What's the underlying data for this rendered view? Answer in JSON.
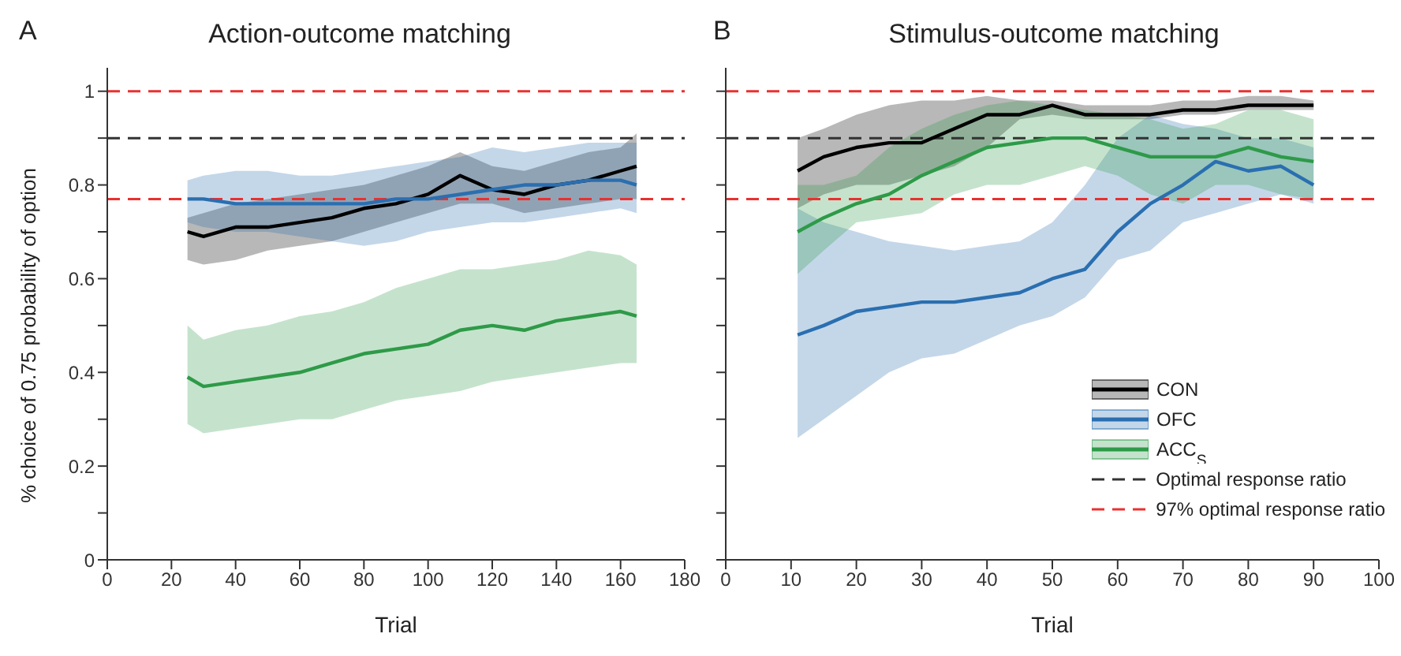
{
  "chart_data": [
    {
      "type": "line",
      "title": "Action-outcome matching",
      "xlabel": "Trial",
      "ylabel": "% choice of 0.75 probability of option",
      "annotations": [
        "A"
      ],
      "x": [
        25,
        30,
        40,
        50,
        60,
        70,
        80,
        90,
        100,
        110,
        120,
        130,
        140,
        150,
        160,
        165
      ],
      "series": [
        {
          "color": "#000000",
          "values": [
            0.7,
            0.69,
            0.71,
            0.71,
            0.72,
            0.73,
            0.75,
            0.76,
            0.78,
            0.82,
            0.79,
            0.78,
            0.8,
            0.81,
            0.83,
            0.84
          ],
          "lower": [
            0.64,
            0.63,
            0.64,
            0.66,
            0.67,
            0.68,
            0.7,
            0.72,
            0.74,
            0.76,
            0.76,
            0.74,
            0.75,
            0.76,
            0.77,
            0.77
          ],
          "upper": [
            0.73,
            0.74,
            0.76,
            0.77,
            0.78,
            0.79,
            0.8,
            0.82,
            0.84,
            0.87,
            0.84,
            0.83,
            0.85,
            0.87,
            0.88,
            0.91
          ]
        },
        {
          "color": "#2a6fb0",
          "values": [
            0.77,
            0.77,
            0.76,
            0.76,
            0.76,
            0.76,
            0.76,
            0.77,
            0.77,
            0.78,
            0.79,
            0.8,
            0.8,
            0.81,
            0.81,
            0.8
          ],
          "lower": [
            0.72,
            0.71,
            0.7,
            0.7,
            0.69,
            0.68,
            0.67,
            0.68,
            0.7,
            0.71,
            0.72,
            0.72,
            0.73,
            0.74,
            0.75,
            0.74
          ],
          "upper": [
            0.81,
            0.82,
            0.83,
            0.83,
            0.82,
            0.82,
            0.83,
            0.84,
            0.85,
            0.86,
            0.88,
            0.87,
            0.88,
            0.89,
            0.89,
            0.89
          ]
        },
        {
          "color": "#2e9a48",
          "values": [
            0.39,
            0.37,
            0.38,
            0.39,
            0.4,
            0.42,
            0.44,
            0.45,
            0.46,
            0.49,
            0.5,
            0.49,
            0.51,
            0.52,
            0.53,
            0.52
          ],
          "lower": [
            0.29,
            0.27,
            0.28,
            0.29,
            0.3,
            0.3,
            0.32,
            0.34,
            0.35,
            0.36,
            0.38,
            0.39,
            0.4,
            0.41,
            0.42,
            0.42
          ],
          "upper": [
            0.5,
            0.47,
            0.49,
            0.5,
            0.52,
            0.53,
            0.55,
            0.58,
            0.6,
            0.62,
            0.62,
            0.63,
            0.64,
            0.66,
            0.65,
            0.63
          ]
        }
      ],
      "xlim": [
        0,
        180
      ],
      "xticks": [
        0,
        20,
        40,
        60,
        80,
        100,
        120,
        140,
        160,
        180
      ],
      "ylim": [
        0,
        1.05
      ],
      "yticks": [
        0,
        {
          "value": 0.1,
          "label": null
        },
        0.2,
        {
          "value": 0.3,
          "label": null
        },
        0.4,
        {
          "value": 0.5,
          "label": null
        },
        0.6,
        {
          "value": 0.7,
          "label": null
        },
        0.8,
        {
          "value": 0.9,
          "label": null
        },
        1
      ],
      "ref_lines": [
        {
          "axis": "y",
          "value": 1,
          "color": "#e8312f",
          "line_style": "dashed"
        },
        {
          "axis": "y",
          "value": 0.9,
          "color": "#333333",
          "line_style": "dashed"
        },
        {
          "axis": "y",
          "value": 0.77,
          "color": "#e8312f",
          "line_style": "dashed"
        }
      ],
      "grid": false,
      "legend": false,
      "marker": "none",
      "line_style": "solid"
    },
    {
      "type": "line",
      "title": "Stimulus-outcome matching",
      "xlabel": "Trial",
      "annotations": [
        "B"
      ],
      "x": [
        11,
        15,
        20,
        25,
        30,
        35,
        40,
        45,
        50,
        55,
        60,
        65,
        70,
        75,
        80,
        85,
        90
      ],
      "series": [
        {
          "name": "CON",
          "color": "#000000",
          "values": [
            0.83,
            0.86,
            0.88,
            0.89,
            0.89,
            0.92,
            0.95,
            0.95,
            0.97,
            0.95,
            0.95,
            0.95,
            0.96,
            0.96,
            0.97,
            0.97,
            0.97
          ],
          "lower": [
            0.75,
            0.78,
            0.8,
            0.8,
            0.82,
            0.84,
            0.88,
            0.94,
            0.95,
            0.94,
            0.94,
            0.94,
            0.95,
            0.95,
            0.96,
            0.96,
            0.96
          ],
          "upper": [
            0.9,
            0.92,
            0.95,
            0.97,
            0.98,
            0.98,
            0.99,
            0.98,
            0.98,
            0.97,
            0.97,
            0.97,
            0.98,
            0.98,
            0.99,
            0.99,
            0.98
          ]
        },
        {
          "name": "OFC",
          "color": "#2a6fb0",
          "values": [
            0.48,
            0.5,
            0.53,
            0.54,
            0.55,
            0.55,
            0.56,
            0.57,
            0.6,
            0.62,
            0.7,
            0.76,
            0.8,
            0.85,
            0.83,
            0.84,
            0.8
          ],
          "lower": [
            0.26,
            0.3,
            0.35,
            0.4,
            0.43,
            0.44,
            0.47,
            0.5,
            0.52,
            0.56,
            0.64,
            0.66,
            0.72,
            0.74,
            0.76,
            0.78,
            0.76
          ],
          "upper": [
            0.75,
            0.72,
            0.7,
            0.68,
            0.67,
            0.66,
            0.67,
            0.68,
            0.72,
            0.8,
            0.9,
            0.95,
            0.93,
            0.92,
            0.9,
            0.9,
            0.88
          ]
        },
        {
          "name": "ACC$_{S}$",
          "color": "#2e9a48",
          "values": [
            0.7,
            0.73,
            0.76,
            0.78,
            0.82,
            0.85,
            0.88,
            0.89,
            0.9,
            0.9,
            0.88,
            0.86,
            0.86,
            0.86,
            0.88,
            0.86,
            0.85
          ],
          "lower": [
            0.61,
            0.66,
            0.72,
            0.73,
            0.74,
            0.78,
            0.8,
            0.8,
            0.82,
            0.84,
            0.82,
            0.78,
            0.76,
            0.8,
            0.8,
            0.78,
            0.77
          ],
          "upper": [
            0.8,
            0.8,
            0.82,
            0.88,
            0.92,
            0.95,
            0.97,
            0.98,
            0.97,
            0.96,
            0.95,
            0.94,
            0.92,
            0.93,
            0.96,
            0.96,
            0.94
          ]
        }
      ],
      "xlim": [
        0,
        100
      ],
      "xticks": [
        0,
        10,
        20,
        30,
        40,
        50,
        60,
        70,
        80,
        90,
        100
      ],
      "ylim": [
        0,
        1.05
      ],
      "yticks": [
        0,
        0.1,
        0.2,
        0.3,
        0.4,
        0.5,
        0.6,
        0.7,
        0.8,
        0.9,
        1
      ],
      "tick_labels": "x",
      "ref_lines": [
        {
          "axis": "y",
          "value": 1,
          "color": "#e8312f",
          "line_style": "dashed"
        },
        {
          "axis": "y",
          "value": 0.9,
          "color": "#333333",
          "line_style": "dashed",
          "label": "Optimal response ratio"
        },
        {
          "axis": "y",
          "value": 0.77,
          "color": "#e8312f",
          "line_style": "dashed",
          "label": "97% optimal response ratio"
        }
      ],
      "grid": false,
      "legend": "bottom right",
      "marker": "none",
      "line_style": "solid"
    }
  ]
}
